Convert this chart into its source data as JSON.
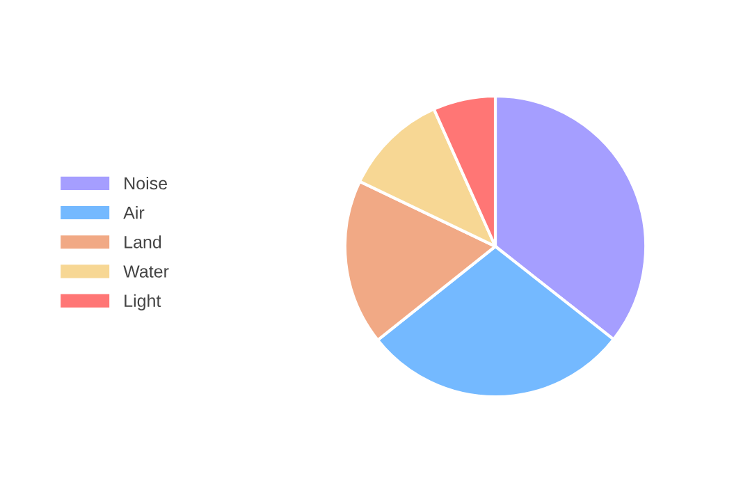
{
  "chart_data": {
    "type": "pie",
    "categories": [
      "Noise",
      "Air",
      "Land",
      "Water",
      "Light"
    ],
    "values": [
      35.6,
      28.7,
      17.8,
      11.2,
      6.7
    ],
    "colors": [
      "#a59eff",
      "#74b9ff",
      "#f1a985",
      "#f7d794",
      "#ff7675"
    ],
    "legend": "left"
  }
}
